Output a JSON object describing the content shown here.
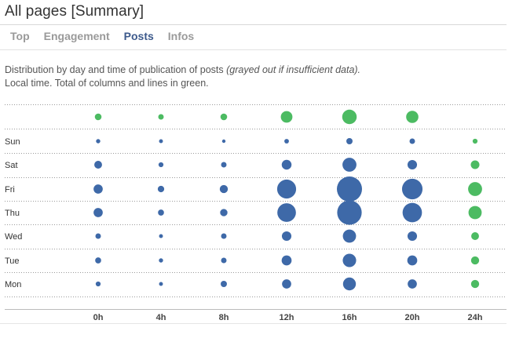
{
  "page": {
    "title": "All pages [Summary]"
  },
  "tabs": [
    {
      "label": "Top",
      "active": false
    },
    {
      "label": "Engagement",
      "active": false
    },
    {
      "label": "Posts",
      "active": true
    },
    {
      "label": "Infos",
      "active": false
    }
  ],
  "description": {
    "line1_plain": "Distribution by day and time of publication of posts ",
    "line1_italic": "(grayed out if insufficient data).",
    "line2": "Local time. Total of columns and lines in green."
  },
  "colors": {
    "data": "#3e69a8",
    "total": "#4cbb62",
    "active_tab": "#3d5a8c"
  },
  "chart_data": {
    "type": "scatter",
    "title": "",
    "rows": [
      "Sun",
      "Sat",
      "Fri",
      "Thu",
      "Wed",
      "Tue",
      "Mon"
    ],
    "columns": [
      "0h",
      "4h",
      "8h",
      "12h",
      "16h",
      "20h",
      "24h"
    ],
    "column_totals": [
      1.5,
      1,
      1.5,
      4.5,
      7,
      5,
      null
    ],
    "note": "24h column holds row totals (green); top row holds column totals (green). Values are relative bubble magnitudes.",
    "values": [
      [
        0.6,
        0.5,
        0.4,
        0.7,
        1.3,
        1.0,
        0.8
      ],
      [
        2.0,
        0.8,
        1.0,
        3.2,
        6.5,
        3.0,
        2.5
      ],
      [
        2.8,
        1.4,
        2.2,
        12.0,
        21.0,
        14.0,
        6.5
      ],
      [
        2.8,
        1.2,
        1.8,
        11.5,
        20.0,
        12.5,
        5.8
      ],
      [
        1.0,
        0.5,
        1.0,
        3.0,
        5.8,
        3.0,
        2.0
      ],
      [
        1.2,
        0.6,
        1.0,
        3.3,
        6.0,
        3.3,
        2.2
      ],
      [
        0.8,
        0.5,
        1.3,
        2.8,
        5.5,
        2.8,
        2.2
      ]
    ]
  }
}
